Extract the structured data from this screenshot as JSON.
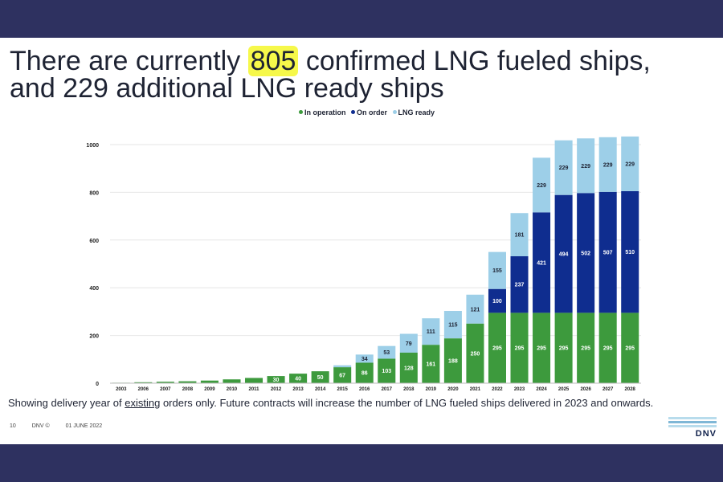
{
  "slide": {
    "title_prefix": "There are currently ",
    "title_highlight": "805",
    "title_suffix": " confirmed LNG fueled ships,",
    "title_line2": "and 229 additional LNG ready ships",
    "note_prefix": "Showing delivery year of ",
    "note_underlined": "existing",
    "note_suffix": " orders only. Future contracts will increase the number of LNG fueled ships delivered in 2023 and onwards.",
    "footer_page": "10",
    "footer_brand": "DNV ©",
    "footer_date": "01 JUNE 2022",
    "logo_text": "DNV"
  },
  "colors": {
    "in_operation": "#3d9a3d",
    "on_order": "#0f2d8f",
    "lng_ready": "#9dcfe8",
    "highlight": "#f6f84a"
  },
  "chart_data": {
    "type": "bar",
    "stacked": true,
    "categories": [
      "2003",
      "2006",
      "2007",
      "2008",
      "2009",
      "2010",
      "2011",
      "2012",
      "2013",
      "2014",
      "2015",
      "2016",
      "2017",
      "2018",
      "2019",
      "2020",
      "2021",
      "2022",
      "2023",
      "2024",
      "2025",
      "2026",
      "2027",
      "2028"
    ],
    "series": [
      {
        "name": "In operation",
        "color": "#3d9a3d",
        "values": [
          2,
          4,
          6,
          8,
          11,
          16,
          22,
          30,
          40,
          50,
          67,
          86,
          103,
          128,
          161,
          188,
          250,
          295,
          295,
          295,
          295,
          295,
          295,
          295
        ],
        "labels": [
          "",
          "",
          "",
          "",
          "",
          "",
          "",
          "30",
          "40",
          "50",
          "67",
          "86",
          "103",
          "128",
          "161",
          "188",
          "250",
          "295",
          "295",
          "295",
          "295",
          "295",
          "295",
          "295"
        ]
      },
      {
        "name": "On order",
        "color": "#0f2d8f",
        "values": [
          0,
          0,
          0,
          0,
          0,
          0,
          0,
          0,
          0,
          0,
          0,
          0,
          0,
          0,
          0,
          0,
          0,
          100,
          237,
          421,
          494,
          502,
          507,
          510
        ],
        "labels": [
          "",
          "",
          "",
          "",
          "",
          "",
          "",
          "",
          "",
          "",
          "",
          "",
          "",
          "",
          "",
          "",
          "",
          "100",
          "237",
          "421",
          "494",
          "502",
          "507",
          "510"
        ]
      },
      {
        "name": "LNG ready",
        "color": "#9dcfe8",
        "values": [
          0,
          0,
          0,
          0,
          0,
          0,
          0,
          0,
          0,
          0,
          8,
          34,
          53,
          79,
          111,
          115,
          121,
          155,
          181,
          229,
          229,
          229,
          229,
          229
        ],
        "labels": [
          "",
          "",
          "",
          "",
          "",
          "",
          "",
          "",
          "",
          "",
          "",
          "34",
          "53",
          "79",
          "111",
          "115",
          "121",
          "155",
          "181",
          "229",
          "229",
          "229",
          "229",
          "229"
        ]
      }
    ],
    "yticks": [
      0,
      200,
      400,
      600,
      800,
      1000
    ],
    "ylim": [
      0,
      1000
    ],
    "grid": true,
    "legend": "top-center"
  }
}
